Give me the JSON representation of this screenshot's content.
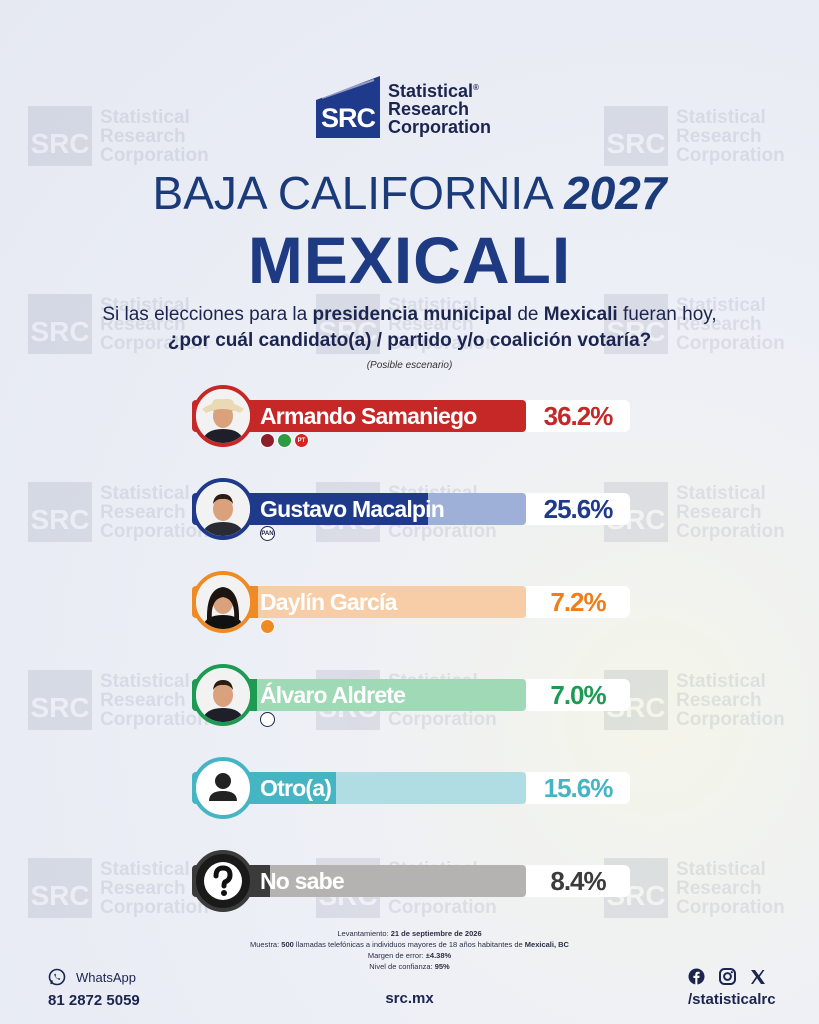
{
  "brand": {
    "logo_abbr": "SRC",
    "name_lines": [
      "Statistical",
      "Research",
      "Corporation"
    ],
    "registered": "®"
  },
  "heading": {
    "state": "BAJA CALIFORNIA",
    "year": "2027",
    "city": "MEXICALI"
  },
  "question": {
    "p1": "Si las elecciones para la ",
    "b1": "presidencia municipal",
    "p2": " de ",
    "b2": "Mexicali",
    "p3": " fueran hoy,",
    "line2": "¿por cuál candidato(a) / partido y/o coalición votaría?",
    "note": "(Posible escenario)"
  },
  "chart_data": {
    "type": "bar",
    "orientation": "horizontal",
    "categories": [
      "Armando Samaniego",
      "Gustavo Macalpin",
      "Daylín García",
      "Álvaro Aldrete",
      "Otro(a)",
      "No sabe"
    ],
    "values": [
      36.2,
      25.6,
      7.2,
      7.0,
      15.6,
      8.4
    ],
    "labels": [
      "36.2%",
      "25.6%",
      "7.2%",
      "7.0%",
      "15.6%",
      "8.4%"
    ],
    "unit": "%",
    "colors": [
      "#c62828",
      "#1f3a8a",
      "#f08a24",
      "#1e9b52",
      "#45b5c4",
      "#3b3b3b"
    ],
    "pale_colors": [
      "#e7b6b7",
      "#9fb0d8",
      "#f7cda7",
      "#9fd9b6",
      "#b0dde4",
      "#b5b3b2"
    ],
    "text_colors": [
      "#c62828",
      "#1f3a8a",
      "#ef7d1a",
      "#1e9b52",
      "#45b5c4",
      "#3b3b3b"
    ],
    "parties": [
      [
        "MORENA",
        "PVEM",
        "PT"
      ],
      [
        "PAN"
      ],
      [
        "MC"
      ],
      [
        "PRI"
      ],
      [],
      []
    ],
    "party_labels": [
      [
        "",
        "",
        "PT"
      ],
      [
        "PAN"
      ],
      [
        ""
      ],
      [
        ""
      ],
      [],
      []
    ],
    "avatars": [
      "candidate-photo",
      "candidate-photo",
      "candidate-photo",
      "candidate-photo",
      "person-icon",
      "question-icon"
    ],
    "xlim": [
      0,
      36.2
    ]
  },
  "footnote": {
    "l1_label": "Levantamiento: ",
    "l1_value": "21 de septiembre de 2026",
    "l2_label": "Muestra: ",
    "l2_value": "500",
    "l2_mid": " llamadas telefónicas a individuos mayores de 18 años habitantes de ",
    "l2_place": "Mexicali, BC",
    "l3_label": "Margen de error: ",
    "l3_value": "±4.38%",
    "l4_label": "Nivel de confianza: ",
    "l4_value": "95%"
  },
  "footer": {
    "whatsapp_label": "WhatsApp",
    "phone": "81 2872 5059",
    "site": "src.mx",
    "handle": "/statisticalrc"
  }
}
